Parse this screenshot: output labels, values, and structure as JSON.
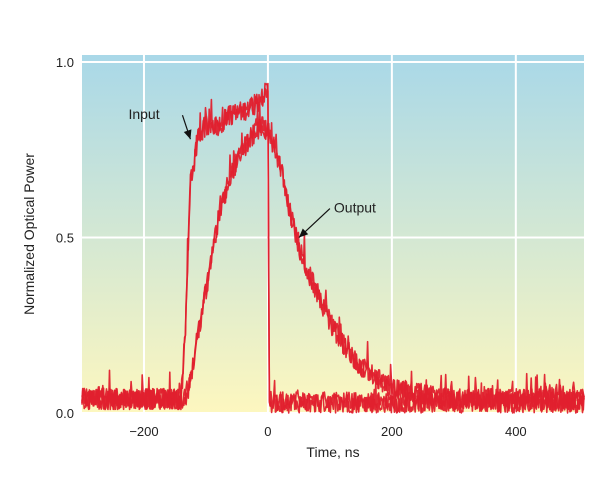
{
  "chart_data": {
    "type": "line",
    "title": "",
    "xlabel": "Time, ns",
    "ylabel": "Normalized Optical Power",
    "xlim": [
      -300,
      510
    ],
    "ylim": [
      0.0,
      1.02
    ],
    "x_ticks": [
      -200,
      0,
      200,
      400
    ],
    "x_tick_labels": [
      "−200",
      "0",
      "200",
      "400"
    ],
    "y_ticks": [
      0.0,
      0.5,
      1.0
    ],
    "y_tick_labels": [
      "0.0",
      "0.5",
      "1.0"
    ],
    "grid": true,
    "background_gradient": {
      "top": "#a9d8e8",
      "bottom": "#fdf7bf"
    },
    "line_color": "#e0202e",
    "noise_amplitude": 0.03,
    "series": [
      {
        "name": "Input",
        "x": [
          -300,
          -140,
          -133,
          -125,
          -112,
          -100,
          -80,
          -60,
          -40,
          -20,
          -10,
          0,
          2,
          5,
          10,
          40,
          100,
          200,
          300,
          400,
          510
        ],
        "y": [
          0.04,
          0.04,
          0.25,
          0.65,
          0.79,
          0.82,
          0.82,
          0.85,
          0.86,
          0.88,
          0.9,
          0.92,
          0.05,
          0.03,
          0.03,
          0.03,
          0.03,
          0.03,
          0.03,
          0.03,
          0.03
        ]
      },
      {
        "name": "Output",
        "x": [
          -300,
          -140,
          -130,
          -120,
          -100,
          -90,
          -80,
          -60,
          -40,
          -20,
          -10,
          0,
          10,
          20,
          30,
          40,
          50,
          60,
          80,
          100,
          120,
          140,
          160,
          200,
          300,
          400,
          510
        ],
        "y": [
          0.04,
          0.04,
          0.05,
          0.15,
          0.35,
          0.45,
          0.55,
          0.68,
          0.75,
          0.8,
          0.82,
          0.8,
          0.76,
          0.7,
          0.62,
          0.54,
          0.47,
          0.42,
          0.34,
          0.26,
          0.2,
          0.15,
          0.12,
          0.07,
          0.04,
          0.04,
          0.04
        ]
      }
    ],
    "annotations": [
      {
        "text": "Input",
        "series": "Input",
        "at_x": -125,
        "at_y": 0.78
      },
      {
        "text": "Output",
        "series": "Output",
        "at_x": 50,
        "at_y": 0.5
      }
    ]
  }
}
